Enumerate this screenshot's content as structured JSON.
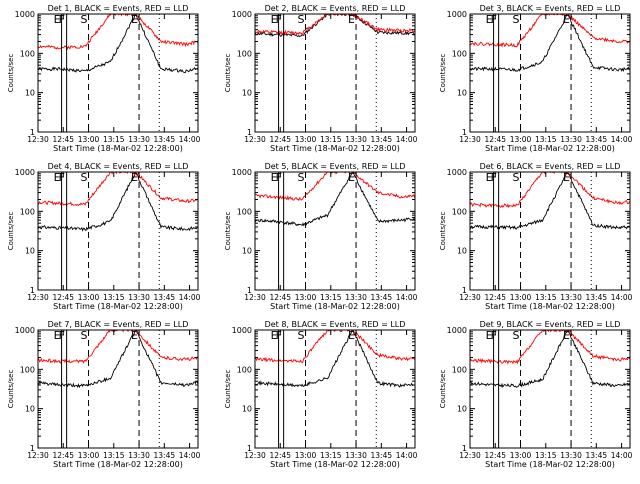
{
  "figure": {
    "ylabel": "Counts/sec",
    "xlabel": "Start Time (18-Mar-02 12:28:00)",
    "x_ticks": [
      "12:30",
      "12:45",
      "13:00",
      "13:15",
      "13:30",
      "13:45",
      "14:00"
    ],
    "y_ticks": [
      "1",
      "10",
      "100",
      "1000"
    ],
    "series_colors": {
      "events": "#000000",
      "lld": "#ff0000"
    },
    "marker_labels": [
      "E",
      "F",
      "S",
      "E"
    ]
  },
  "chart_data": [
    {
      "type": "line",
      "title": "Det 1, BLACK = Events, RED = LLD",
      "x_minutes_after_12_28": [
        2,
        15,
        30,
        45,
        60,
        75,
        90,
        95
      ],
      "ylim": [
        1,
        1000
      ],
      "yscale": "log",
      "series": [
        {
          "name": "BLACK = Events",
          "values": [
            40,
            40,
            35,
            60,
            1000,
            40,
            35,
            40
          ]
        },
        {
          "name": "RED = LLD",
          "values": [
            150,
            140,
            150,
            1000,
            1000,
            200,
            170,
            190
          ]
        }
      ],
      "markers": [
        {
          "label": "E",
          "x": 16,
          "style": "solid"
        },
        {
          "label": "F",
          "x": 19,
          "style": "solid"
        },
        {
          "label": "S",
          "x": 32,
          "style": "dashed"
        },
        {
          "label": "E",
          "x": 62,
          "style": "dashed"
        },
        {
          "label": "",
          "x": 74,
          "style": "dotted"
        }
      ]
    },
    {
      "type": "line",
      "title": "Det 2, BLACK = Events, RED = LLD",
      "x_minutes_after_12_28": [
        2,
        15,
        30,
        45,
        60,
        75,
        90,
        95
      ],
      "ylim": [
        1,
        1000
      ],
      "yscale": "log",
      "series": [
        {
          "name": "BLACK = Events",
          "values": [
            320,
            300,
            280,
            1000,
            1000,
            340,
            330,
            320
          ]
        },
        {
          "name": "RED = LLD",
          "values": [
            360,
            340,
            330,
            1000,
            1000,
            400,
            380,
            390
          ]
        }
      ],
      "markers": [
        {
          "label": "E",
          "x": 16,
          "style": "solid"
        },
        {
          "label": "F",
          "x": 19,
          "style": "solid"
        },
        {
          "label": "S",
          "x": 32,
          "style": "dashed"
        },
        {
          "label": "E",
          "x": 62,
          "style": "dashed"
        },
        {
          "label": "",
          "x": 74,
          "style": "dotted"
        }
      ]
    },
    {
      "type": "line",
      "title": "Det 3, BLACK = Events, RED = LLD",
      "x_minutes_after_12_28": [
        2,
        15,
        30,
        45,
        60,
        75,
        90,
        95
      ],
      "ylim": [
        1,
        1000
      ],
      "yscale": "log",
      "series": [
        {
          "name": "BLACK = Events",
          "values": [
            40,
            40,
            38,
            60,
            1000,
            45,
            38,
            40
          ]
        },
        {
          "name": "RED = LLD",
          "values": [
            180,
            170,
            160,
            1000,
            1000,
            250,
            200,
            200
          ]
        }
      ],
      "markers": [
        {
          "label": "E",
          "x": 16,
          "style": "solid"
        },
        {
          "label": "F",
          "x": 19,
          "style": "solid"
        },
        {
          "label": "S",
          "x": 32,
          "style": "dashed"
        },
        {
          "label": "E",
          "x": 62,
          "style": "dashed"
        },
        {
          "label": "",
          "x": 74,
          "style": "dotted"
        }
      ]
    },
    {
      "type": "line",
      "title": "Det 4, BLACK = Events, RED = LLD",
      "x_minutes_after_12_28": [
        2,
        15,
        30,
        45,
        60,
        75,
        90,
        95
      ],
      "ylim": [
        1,
        1000
      ],
      "yscale": "log",
      "series": [
        {
          "name": "BLACK = Events",
          "values": [
            40,
            38,
            35,
            55,
            1000,
            40,
            35,
            38
          ]
        },
        {
          "name": "RED = LLD",
          "values": [
            170,
            160,
            150,
            1000,
            1000,
            220,
            180,
            190
          ]
        }
      ],
      "markers": [
        {
          "label": "E",
          "x": 16,
          "style": "solid"
        },
        {
          "label": "F",
          "x": 19,
          "style": "solid"
        },
        {
          "label": "S",
          "x": 32,
          "style": "dashed"
        },
        {
          "label": "E",
          "x": 62,
          "style": "dashed"
        },
        {
          "label": "",
          "x": 74,
          "style": "dotted"
        }
      ]
    },
    {
      "type": "line",
      "title": "Det 5, BLACK = Events, RED = LLD",
      "x_minutes_after_12_28": [
        2,
        15,
        30,
        45,
        60,
        75,
        90,
        95
      ],
      "ylim": [
        1,
        1000
      ],
      "yscale": "log",
      "series": [
        {
          "name": "BLACK = Events",
          "values": [
            60,
            55,
            45,
            80,
            1000,
            55,
            60,
            65
          ]
        },
        {
          "name": "RED = LLD",
          "values": [
            250,
            230,
            200,
            1000,
            1000,
            300,
            230,
            250
          ]
        }
      ],
      "markers": [
        {
          "label": "E",
          "x": 16,
          "style": "solid"
        },
        {
          "label": "F",
          "x": 19,
          "style": "solid"
        },
        {
          "label": "S",
          "x": 32,
          "style": "dashed"
        },
        {
          "label": "E",
          "x": 62,
          "style": "dashed"
        },
        {
          "label": "",
          "x": 74,
          "style": "dotted"
        }
      ]
    },
    {
      "type": "line",
      "title": "Det 6, BLACK = Events, RED = LLD",
      "x_minutes_after_12_28": [
        2,
        15,
        30,
        45,
        60,
        75,
        90,
        95
      ],
      "ylim": [
        1,
        1000
      ],
      "yscale": "log",
      "series": [
        {
          "name": "BLACK = Events",
          "values": [
            40,
            40,
            38,
            60,
            1000,
            45,
            38,
            40
          ]
        },
        {
          "name": "RED = LLD",
          "values": [
            150,
            140,
            140,
            1000,
            1000,
            220,
            160,
            170
          ]
        }
      ],
      "markers": [
        {
          "label": "E",
          "x": 16,
          "style": "solid"
        },
        {
          "label": "F",
          "x": 19,
          "style": "solid"
        },
        {
          "label": "S",
          "x": 32,
          "style": "dashed"
        },
        {
          "label": "E",
          "x": 62,
          "style": "dashed"
        },
        {
          "label": "",
          "x": 74,
          "style": "dotted"
        }
      ]
    },
    {
      "type": "line",
      "title": "Det 7, BLACK = Events, RED = LLD",
      "x_minutes_after_12_28": [
        2,
        15,
        30,
        45,
        60,
        75,
        90,
        95
      ],
      "ylim": [
        1,
        1000
      ],
      "yscale": "log",
      "series": [
        {
          "name": "BLACK = Events",
          "values": [
            45,
            40,
            38,
            60,
            1000,
            45,
            40,
            45
          ]
        },
        {
          "name": "RED = LLD",
          "values": [
            170,
            160,
            160,
            1000,
            1000,
            200,
            180,
            190
          ]
        }
      ],
      "markers": [
        {
          "label": "E",
          "x": 16,
          "style": "solid"
        },
        {
          "label": "F",
          "x": 19,
          "style": "solid"
        },
        {
          "label": "S",
          "x": 32,
          "style": "dashed"
        },
        {
          "label": "E",
          "x": 62,
          "style": "dashed"
        },
        {
          "label": "",
          "x": 74,
          "style": "dotted"
        }
      ]
    },
    {
      "type": "line",
      "title": "Det 8, BLACK = Events, RED = LLD",
      "x_minutes_after_12_28": [
        2,
        15,
        30,
        45,
        60,
        75,
        90,
        95
      ],
      "ylim": [
        1,
        1000
      ],
      "yscale": "log",
      "series": [
        {
          "name": "BLACK = Events",
          "values": [
            45,
            42,
            38,
            60,
            1000,
            45,
            38,
            42
          ]
        },
        {
          "name": "RED = LLD",
          "values": [
            180,
            170,
            160,
            1000,
            1000,
            230,
            180,
            190
          ]
        }
      ],
      "markers": [
        {
          "label": "E",
          "x": 16,
          "style": "solid"
        },
        {
          "label": "F",
          "x": 19,
          "style": "solid"
        },
        {
          "label": "S",
          "x": 32,
          "style": "dashed"
        },
        {
          "label": "E",
          "x": 62,
          "style": "dashed"
        },
        {
          "label": "",
          "x": 74,
          "style": "dotted"
        }
      ]
    },
    {
      "type": "line",
      "title": "Det 9, BLACK = Events, RED = LLD",
      "x_minutes_after_12_28": [
        2,
        15,
        30,
        45,
        60,
        75,
        90,
        95
      ],
      "ylim": [
        1,
        1000
      ],
      "yscale": "log",
      "series": [
        {
          "name": "BLACK = Events",
          "values": [
            45,
            40,
            38,
            55,
            1000,
            45,
            38,
            42
          ]
        },
        {
          "name": "RED = LLD",
          "values": [
            170,
            160,
            150,
            1000,
            1000,
            220,
            170,
            190
          ]
        }
      ],
      "markers": [
        {
          "label": "E",
          "x": 16,
          "style": "solid"
        },
        {
          "label": "F",
          "x": 19,
          "style": "solid"
        },
        {
          "label": "S",
          "x": 32,
          "style": "dashed"
        },
        {
          "label": "E",
          "x": 62,
          "style": "dashed"
        },
        {
          "label": "",
          "x": 74,
          "style": "dotted"
        }
      ]
    }
  ]
}
